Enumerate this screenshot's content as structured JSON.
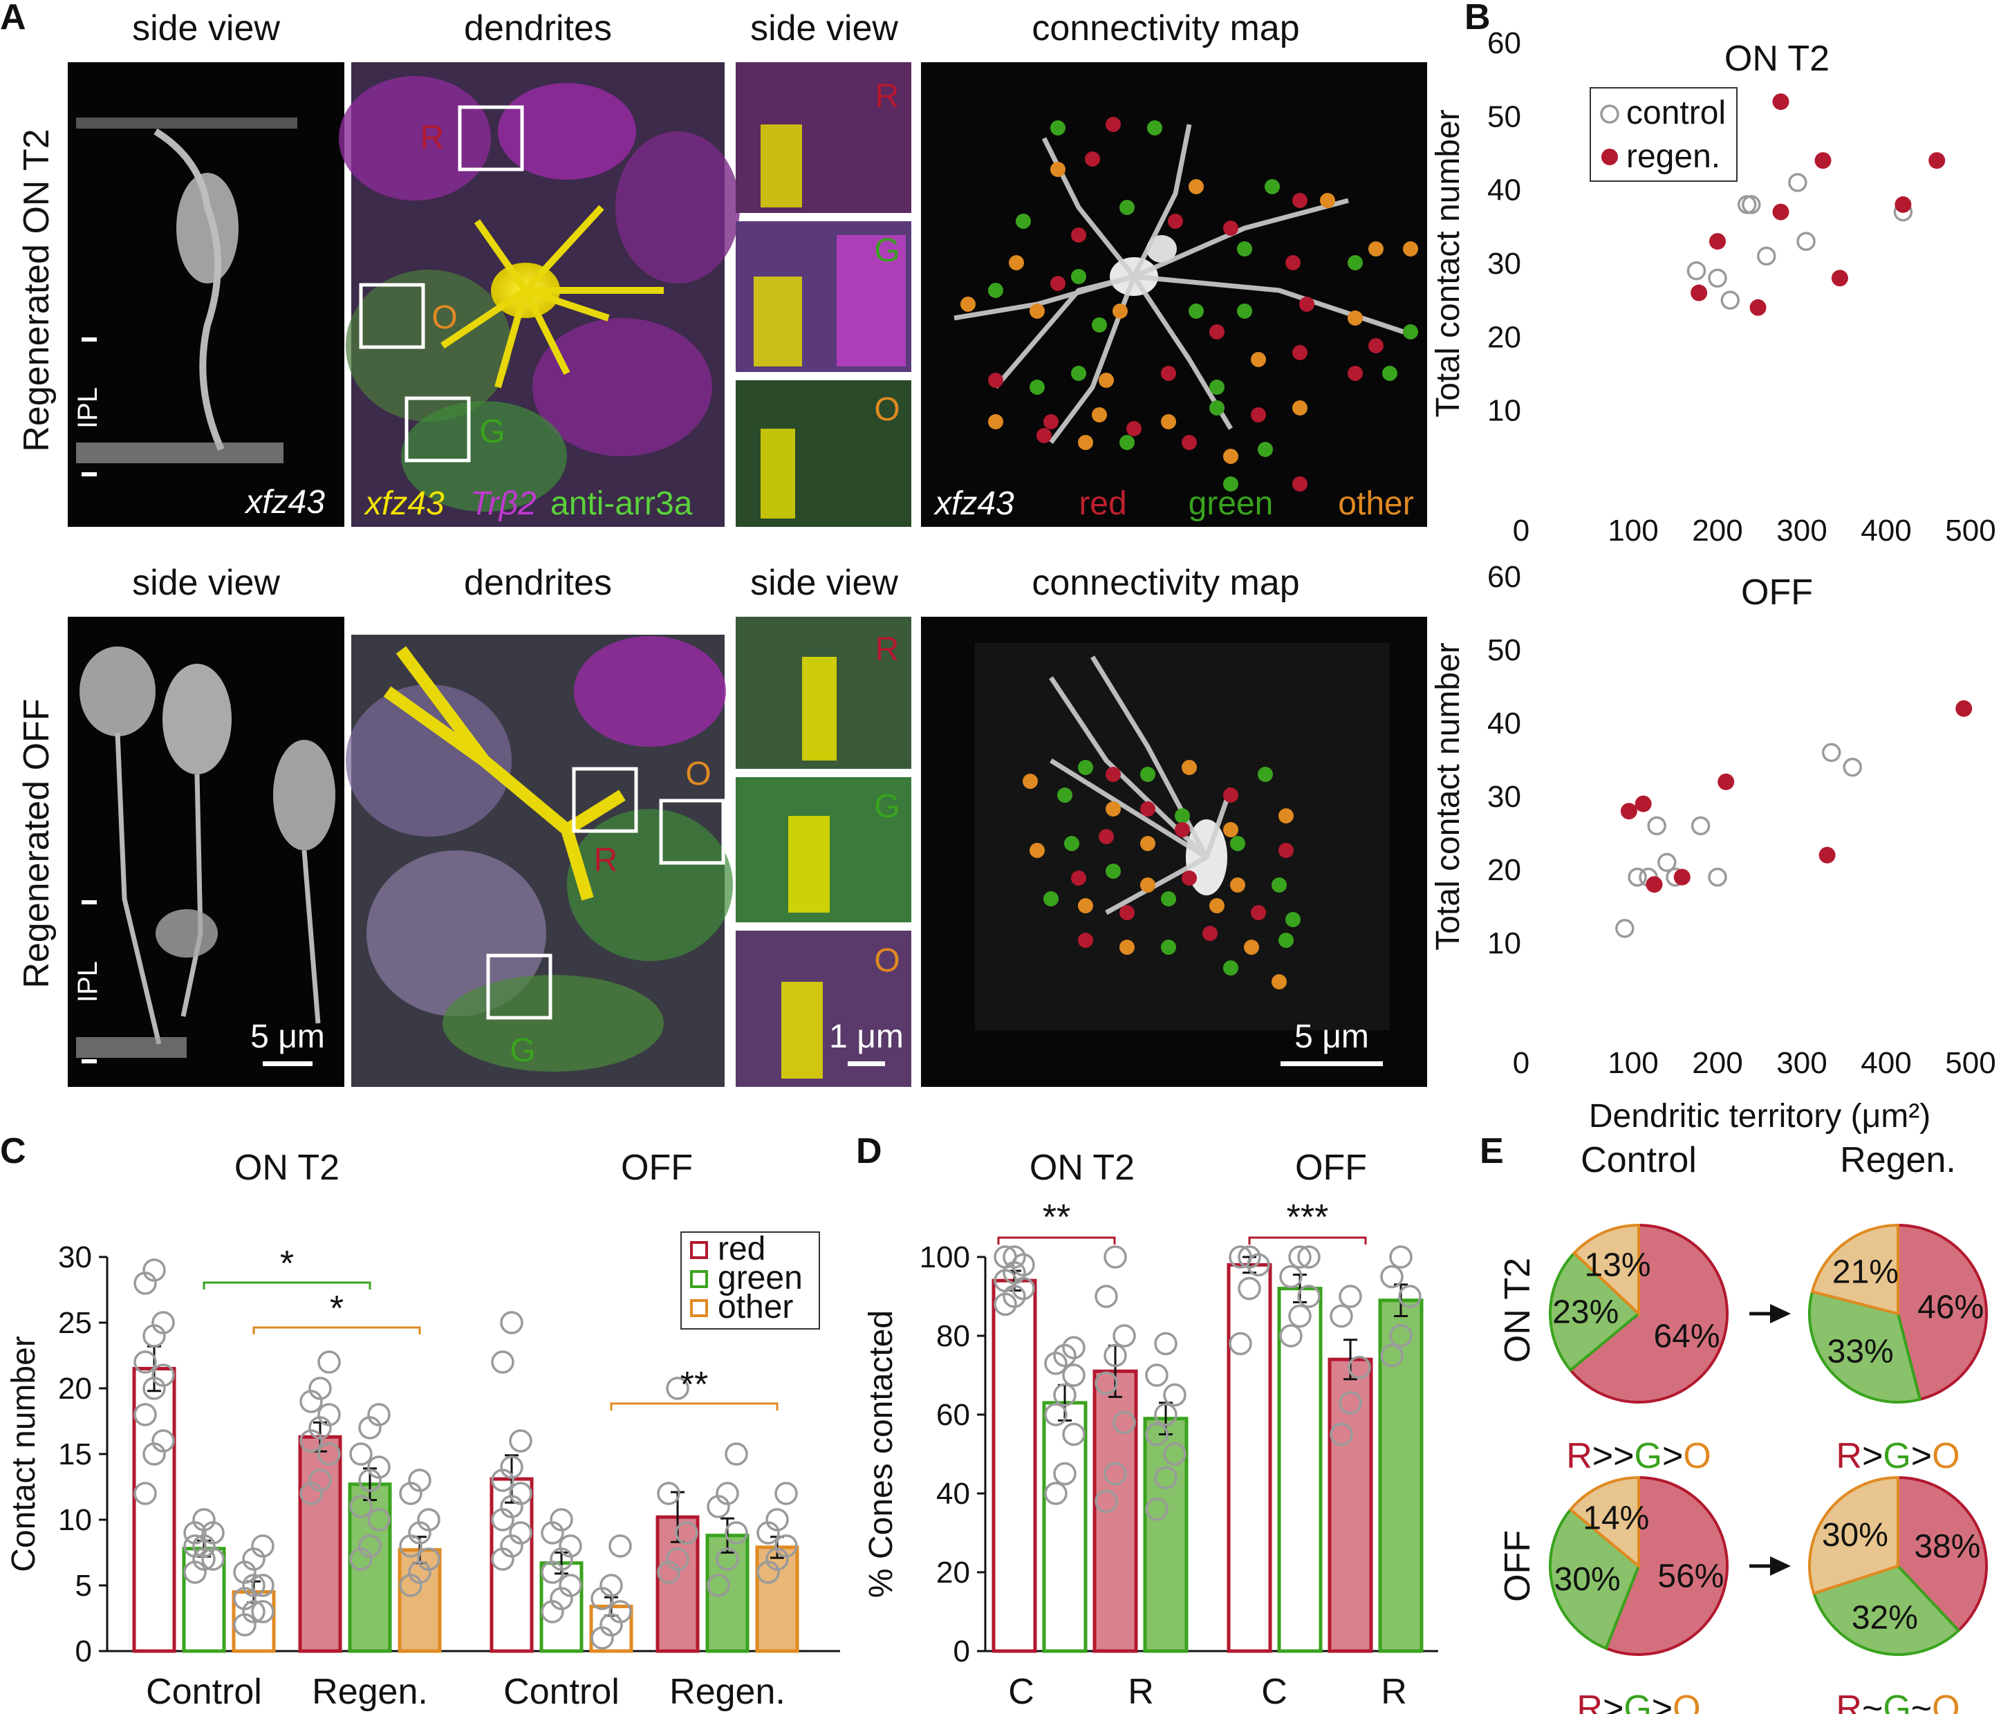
{
  "panels": {
    "A": {
      "label": "A",
      "columns": [
        "side view",
        "dendrites",
        "side view",
        "connectivity map"
      ],
      "row1_label": "Regenerated ON T2",
      "row2_label": "Regenerated OFF",
      "ipl": "IPL",
      "stain_xfz43": "xfz43",
      "stain_trb2": "Trβ2",
      "stain_arr3a": "anti-arr3a",
      "legend_red": "red",
      "legend_green": "green",
      "legend_other": "other",
      "box_r": "R",
      "box_g": "G",
      "box_o": "O",
      "scale_5um": "5 μm",
      "scale_1um": "1 μm"
    },
    "B": {
      "label": "B"
    },
    "C": {
      "label": "C"
    },
    "D": {
      "label": "D"
    },
    "E": {
      "label": "E"
    }
  },
  "colors": {
    "red": "#b3192f",
    "green": "#3aa31e",
    "orange": "#e08a22",
    "red_fill": "#d9828e",
    "green_fill": "#86c267",
    "orange_fill": "#e8b778",
    "pie_red": "#d4707d",
    "pie_green": "#89c26a",
    "pie_orange": "#e8c58e"
  },
  "chart_data": [
    {
      "id": "B-top",
      "type": "scatter",
      "title": "ON T2",
      "xlabel": "",
      "ylabel": "Total contact number",
      "xlim": [
        0,
        500
      ],
      "ylim": [
        0,
        60
      ],
      "xticks": [
        0,
        100,
        200,
        300,
        400,
        500
      ],
      "yticks": [
        10,
        20,
        30,
        40,
        50,
        60
      ],
      "legend": "top-left",
      "series": [
        {
          "name": "control",
          "style": "open",
          "points": [
            [
              175,
              29
            ],
            [
              200,
              28
            ],
            [
              215,
              25
            ],
            [
              235,
              38
            ],
            [
              240,
              38
            ],
            [
              258,
              31
            ],
            [
              295,
              41
            ],
            [
              305,
              33
            ],
            [
              420,
              37
            ]
          ]
        },
        {
          "name": "regen.",
          "style": "filled",
          "points": [
            [
              178,
              26
            ],
            [
              200,
              33
            ],
            [
              248,
              24
            ],
            [
              275,
              52
            ],
            [
              275,
              37
            ],
            [
              325,
              44
            ],
            [
              345,
              28
            ],
            [
              420,
              38
            ],
            [
              460,
              44
            ]
          ]
        }
      ]
    },
    {
      "id": "B-bottom",
      "type": "scatter",
      "title": "OFF",
      "xlabel": "Dendritic territory (μm²)",
      "ylabel": "Total contact number",
      "xlim": [
        0,
        500
      ],
      "ylim": [
        0,
        60
      ],
      "xticks": [
        0,
        100,
        200,
        300,
        400,
        500
      ],
      "yticks": [
        10,
        20,
        30,
        40,
        50,
        60
      ],
      "series": [
        {
          "name": "control",
          "style": "open",
          "points": [
            [
              90,
              12
            ],
            [
              105,
              19
            ],
            [
              118,
              19
            ],
            [
              128,
              26
            ],
            [
              140,
              21
            ],
            [
              150,
              19
            ],
            [
              180,
              26
            ],
            [
              200,
              19
            ],
            [
              335,
              36
            ],
            [
              360,
              34
            ]
          ]
        },
        {
          "name": "regen.",
          "style": "filled",
          "points": [
            [
              95,
              28
            ],
            [
              112,
              29
            ],
            [
              125,
              18
            ],
            [
              158,
              19
            ],
            [
              210,
              32
            ],
            [
              330,
              22
            ],
            [
              492,
              42
            ]
          ]
        }
      ]
    },
    {
      "id": "C",
      "type": "bar",
      "titles": [
        "ON T2",
        "OFF"
      ],
      "ylabel": "Contact number",
      "ylim": [
        0,
        30
      ],
      "yticks": [
        0,
        5,
        10,
        15,
        20,
        25,
        30
      ],
      "group_labels": [
        "Control",
        "Regen.",
        "Control",
        "Regen."
      ],
      "legend": [
        "red",
        "green",
        "other"
      ],
      "significance": [
        "*",
        "*",
        "**"
      ],
      "bars": [
        {
          "group": 0,
          "color": "red",
          "filled": false,
          "value": 21.5,
          "err": 1.7,
          "points": [
            12,
            15,
            16,
            18,
            20,
            21,
            22,
            24,
            25,
            28,
            29
          ]
        },
        {
          "group": 0,
          "color": "green",
          "filled": false,
          "value": 7.8,
          "err": 0.6,
          "points": [
            6,
            7,
            7,
            8,
            8,
            9,
            9,
            10
          ]
        },
        {
          "group": 0,
          "color": "orange",
          "filled": false,
          "value": 4.5,
          "err": 0.8,
          "points": [
            2,
            3,
            3,
            4,
            5,
            5,
            6,
            7,
            8
          ]
        },
        {
          "group": 1,
          "color": "red",
          "filled": true,
          "value": 16.3,
          "err": 1.1,
          "points": [
            12,
            13,
            15,
            16,
            17,
            18,
            19,
            20,
            22
          ]
        },
        {
          "group": 1,
          "color": "green",
          "filled": true,
          "value": 12.7,
          "err": 1.2,
          "points": [
            7,
            8,
            10,
            11,
            13,
            14,
            15,
            17,
            18
          ]
        },
        {
          "group": 1,
          "color": "orange",
          "filled": true,
          "value": 7.7,
          "err": 1.0,
          "points": [
            5,
            6,
            7,
            8,
            9,
            10,
            12,
            13
          ]
        },
        {
          "group": 2,
          "color": "red",
          "filled": false,
          "value": 13.1,
          "err": 1.8,
          "points": [
            7,
            8,
            9,
            10,
            11,
            12,
            13,
            14,
            16,
            22,
            25
          ]
        },
        {
          "group": 2,
          "color": "green",
          "filled": false,
          "value": 6.7,
          "err": 0.8,
          "points": [
            3,
            4,
            5,
            6,
            7,
            8,
            9,
            10
          ]
        },
        {
          "group": 2,
          "color": "orange",
          "filled": false,
          "value": 3.4,
          "err": 0.7,
          "points": [
            1,
            2,
            3,
            4,
            5,
            8
          ]
        },
        {
          "group": 3,
          "color": "red",
          "filled": true,
          "value": 10.2,
          "err": 1.9,
          "points": [
            6,
            7,
            9,
            12,
            20
          ]
        },
        {
          "group": 3,
          "color": "green",
          "filled": true,
          "value": 8.8,
          "err": 1.3,
          "points": [
            5,
            7,
            9,
            11,
            12,
            15
          ]
        },
        {
          "group": 3,
          "color": "orange",
          "filled": true,
          "value": 7.9,
          "err": 0.8,
          "points": [
            6,
            7,
            8,
            9,
            10,
            12
          ]
        }
      ]
    },
    {
      "id": "D",
      "type": "bar",
      "titles": [
        "ON T2",
        "OFF"
      ],
      "ylabel": "% Cones contacted",
      "ylim": [
        0,
        100
      ],
      "yticks": [
        0,
        20,
        40,
        60,
        80,
        100
      ],
      "categories": [
        "C",
        "R",
        "C",
        "R"
      ],
      "significance": [
        "**",
        "***"
      ],
      "bars": [
        {
          "group": 0,
          "color": "red",
          "filled": false,
          "value": 94,
          "err": 2.5,
          "points": [
            88,
            90,
            92,
            94,
            96,
            98,
            100,
            100
          ]
        },
        {
          "group": 0,
          "color": "green",
          "filled": false,
          "value": 63,
          "err": 4.5,
          "points": [
            40,
            45,
            55,
            60,
            65,
            70,
            73,
            75,
            77
          ]
        },
        {
          "group": 1,
          "color": "red",
          "filled": true,
          "value": 71,
          "err": 6.5,
          "points": [
            38,
            45,
            58,
            68,
            75,
            80,
            90,
            100
          ]
        },
        {
          "group": 1,
          "color": "green",
          "filled": true,
          "value": 59,
          "err": 4.0,
          "points": [
            36,
            44,
            50,
            55,
            60,
            65,
            70,
            78
          ]
        },
        {
          "group": 2,
          "color": "red",
          "filled": false,
          "value": 98,
          "err": 2.0,
          "points": [
            78,
            92,
            98,
            100,
            100
          ]
        },
        {
          "group": 2,
          "color": "green",
          "filled": false,
          "value": 92,
          "err": 3.5,
          "points": [
            80,
            85,
            90,
            95,
            100,
            100
          ]
        },
        {
          "group": 3,
          "color": "red",
          "filled": true,
          "value": 74,
          "err": 5.0,
          "points": [
            55,
            63,
            72,
            85,
            90
          ]
        },
        {
          "group": 3,
          "color": "green",
          "filled": true,
          "value": 89,
          "err": 4.0,
          "points": [
            75,
            80,
            90,
            95,
            100
          ]
        }
      ]
    },
    {
      "id": "E",
      "type": "pie",
      "col_titles": [
        "Control",
        "Regen."
      ],
      "row_titles": [
        "ON T2",
        "OFF"
      ],
      "pies": [
        {
          "row": 0,
          "col": 0,
          "slices": [
            64,
            23,
            13
          ],
          "labels": [
            "64%",
            "23%",
            "13%"
          ],
          "rank": "R>>G>O"
        },
        {
          "row": 0,
          "col": 1,
          "slices": [
            46,
            33,
            21
          ],
          "labels": [
            "46%",
            "33%",
            "21%"
          ],
          "rank": "R>G>O"
        },
        {
          "row": 1,
          "col": 0,
          "slices": [
            56,
            30,
            14
          ],
          "labels": [
            "56%",
            "30%",
            "14%"
          ],
          "rank": "R>G>O"
        },
        {
          "row": 1,
          "col": 1,
          "slices": [
            38,
            32,
            30
          ],
          "labels": [
            "38%",
            "32%",
            "30%"
          ],
          "rank": "R~G~O"
        }
      ]
    }
  ]
}
